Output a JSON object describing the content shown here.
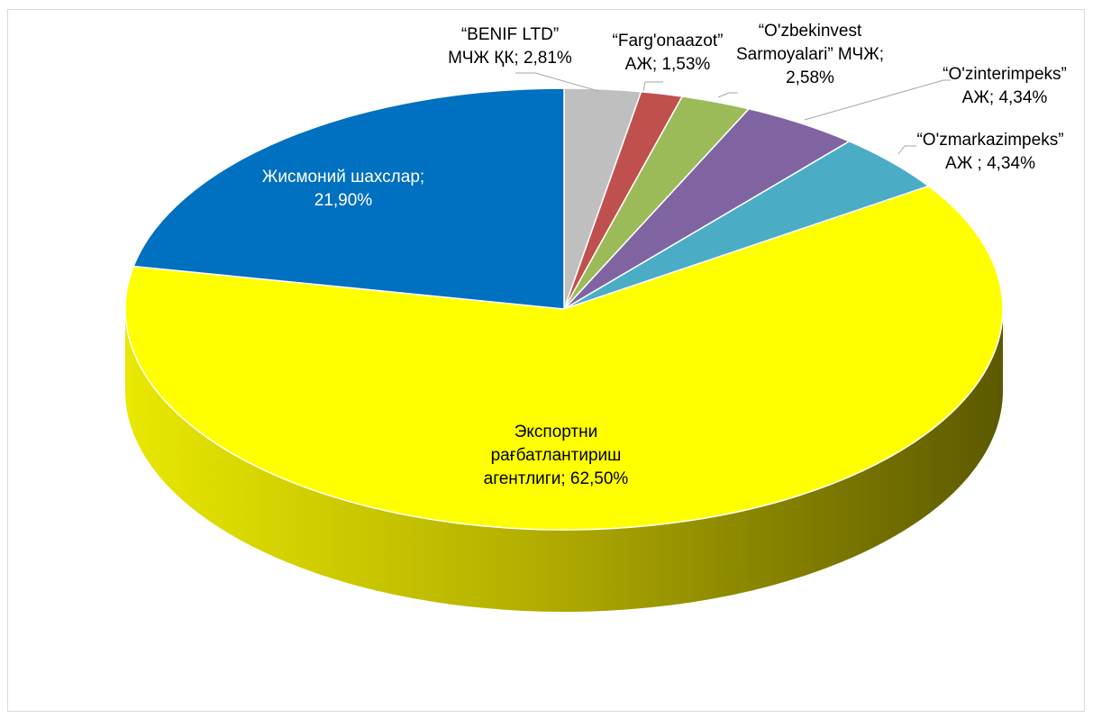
{
  "chart_data": {
    "type": "pie",
    "style": "3d",
    "legend": "none",
    "slices": [
      {
        "label_lines": [
          "“BENIF LTD”",
          "МЧЖ ҚК; 2,81%"
        ],
        "value": 2.81,
        "color": "#bfbfbf",
        "side": "#8a8a8a",
        "label_color": "dark",
        "leader": true
      },
      {
        "label_lines": [
          "“Farg'onaazot”",
          "АЖ; 1,53%"
        ],
        "value": 1.53,
        "color": "#c0504d",
        "side": "#8b3532",
        "label_color": "dark",
        "leader": true
      },
      {
        "label_lines": [
          "“O'zbekinvest",
          "Sarmoyalari” МЧЖ;",
          "2,58%"
        ],
        "value": 2.58,
        "color": "#9bbb59",
        "side": "#6e8a3c",
        "label_color": "dark",
        "leader": true
      },
      {
        "label_lines": [
          "“O'zinterimpeks”",
          "АЖ; 4,34%"
        ],
        "value": 4.34,
        "color": "#8064a2",
        "side": "#5a4574",
        "label_color": "dark",
        "leader": true
      },
      {
        "label_lines": [
          "“O'zmarkazimpeks”",
          "АЖ ; 4,34%"
        ],
        "value": 4.34,
        "color": "#4bacc6",
        "side": "#33798b",
        "label_color": "dark",
        "leader": true
      },
      {
        "label_lines": [
          "Экспортни",
          "рағбатлантириш",
          "агентлиги; 62,50%"
        ],
        "value": 62.5,
        "color": "#ffff00",
        "side": "#a6a300",
        "label_color": "dark",
        "leader": false
      },
      {
        "label_lines": [
          "Жисмоний шахслар;",
          "21,90%"
        ],
        "value": 21.9,
        "color": "#0070c0",
        "side": "#004d86",
        "label_color": "light",
        "leader": false
      }
    ]
  }
}
